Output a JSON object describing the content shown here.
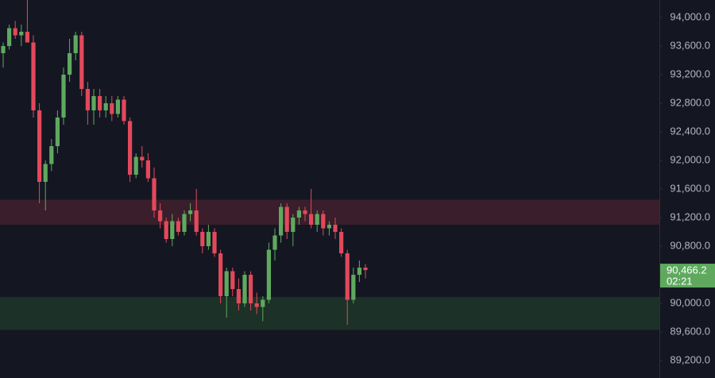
{
  "chart_data": {
    "type": "candlestick",
    "open": [
      93500,
      93600,
      93850,
      93750,
      93800,
      93650,
      92700,
      91700,
      91950,
      92200,
      92600,
      93200,
      93500,
      93750,
      93000,
      92700,
      92900,
      92700,
      92800,
      92650,
      92850,
      92550,
      91800,
      92050,
      92000,
      91750,
      91300,
      91150,
      90900,
      91150,
      91000,
      91250,
      91300,
      91000,
      90800,
      91000,
      90700,
      90100,
      90450,
      90200,
      90000,
      90400,
      90000,
      89950,
      90050,
      90750,
      90950,
      91350,
      91000,
      91200,
      91300,
      91250,
      91100,
      91250,
      91050,
      91100,
      91000,
      90700,
      90050,
      90400,
      90500
    ],
    "high": [
      93650,
      93900,
      93950,
      93900,
      94250,
      93750,
      92800,
      92000,
      92300,
      92700,
      93300,
      93700,
      93800,
      93800,
      93100,
      93000,
      93000,
      92900,
      92900,
      92900,
      92900,
      92600,
      92100,
      92200,
      92100,
      91900,
      91400,
      91200,
      91250,
      91200,
      91300,
      91400,
      91600,
      91050,
      91100,
      91050,
      90750,
      90500,
      90500,
      90350,
      90450,
      90450,
      90150,
      90100,
      90850,
      91050,
      91400,
      91400,
      91250,
      91350,
      91350,
      91600,
      91300,
      91300,
      91150,
      91200,
      91050,
      90750,
      90500,
      90600,
      90550
    ],
    "low": [
      93300,
      93550,
      93700,
      93600,
      93700,
      92600,
      91400,
      91300,
      91850,
      92100,
      92500,
      93100,
      93400,
      92900,
      92500,
      92500,
      92600,
      92600,
      92550,
      92600,
      92500,
      91700,
      91750,
      91900,
      91700,
      91200,
      91050,
      90850,
      90800,
      90950,
      90950,
      91150,
      90950,
      90700,
      90750,
      90650,
      90000,
      89800,
      90100,
      89900,
      89950,
      89900,
      89850,
      89750,
      90000,
      90600,
      90850,
      90900,
      90800,
      91100,
      91150,
      91050,
      91000,
      90950,
      90950,
      90900,
      90650,
      89700,
      90000,
      90300,
      90350
    ],
    "close": [
      93600,
      93850,
      93750,
      93800,
      93650,
      92700,
      91700,
      91950,
      92200,
      92600,
      93200,
      93500,
      93750,
      93000,
      92700,
      92900,
      92700,
      92800,
      92650,
      92850,
      92550,
      91800,
      92050,
      92000,
      91750,
      91300,
      91150,
      90900,
      91150,
      91000,
      91250,
      91300,
      91000,
      90800,
      91000,
      90700,
      90100,
      90450,
      90200,
      90000,
      90400,
      90000,
      89950,
      90050,
      90750,
      90950,
      91350,
      91000,
      91200,
      91300,
      91250,
      91100,
      91250,
      91050,
      91100,
      91000,
      90700,
      90050,
      90400,
      90500,
      90466.2
    ],
    "up_color": "#5fa95f",
    "down_color": "#e2495b",
    "zones": [
      {
        "from": 91100,
        "to": 91450,
        "color": "#3a1e2b"
      },
      {
        "from": 89630,
        "to": 90090,
        "color": "#1c3127"
      }
    ],
    "last_price": {
      "value": 90466.2,
      "label": "90,466.2"
    },
    "countdown": "02:21",
    "ylim": [
      88956,
      94244
    ],
    "yticks": [
      {
        "value": 89200,
        "label": "89,200.0"
      },
      {
        "value": 89600,
        "label": "89,600.0"
      },
      {
        "value": 90000,
        "label": "90,000.0"
      },
      {
        "value": 90800,
        "label": "90,800.0"
      },
      {
        "value": 91200,
        "label": "91,200.0"
      },
      {
        "value": 91600,
        "label": "91,600.0"
      },
      {
        "value": 92000,
        "label": "92,000.0"
      },
      {
        "value": 92400,
        "label": "92,400.0"
      },
      {
        "value": 92800,
        "label": "92,800.0"
      },
      {
        "value": 93200,
        "label": "93,200.0"
      },
      {
        "value": 93600,
        "label": "93,600.0"
      },
      {
        "value": 94000,
        "label": "94,000.0"
      }
    ]
  }
}
